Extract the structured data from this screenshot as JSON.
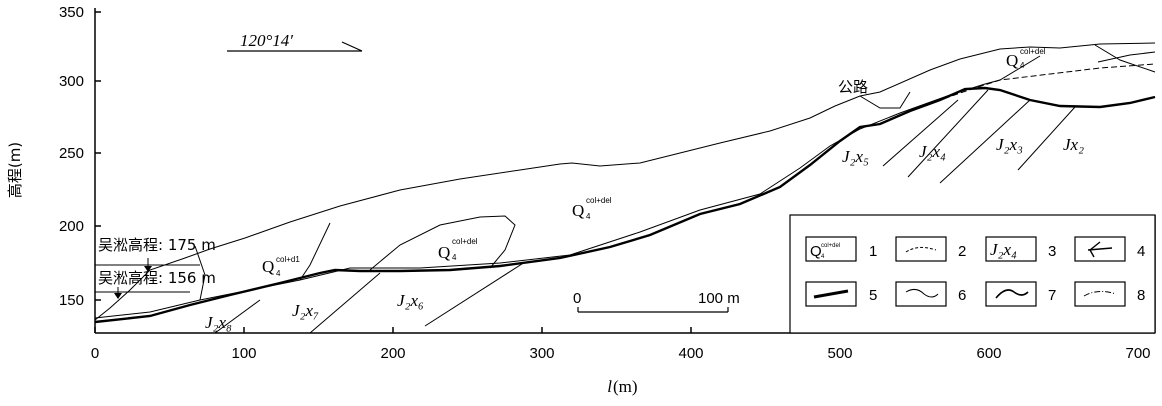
{
  "axes": {
    "xlabel_italic": "l",
    "xlabel_unit": "(m)",
    "ylabel": "高程(m)",
    "x_ticks": [
      "0",
      "100",
      "200",
      "300",
      "400",
      "500",
      "600",
      "700"
    ],
    "y_ticks": [
      "350",
      "300",
      "250",
      "200",
      "150"
    ]
  },
  "annotations": {
    "bearing": "120°14′",
    "road": "公路",
    "wusong_175": "吴淞高程: 175 m",
    "wusong_156": "吴淞高程: 156 m",
    "scale_zero": "0",
    "scale_end": "100 m"
  },
  "units": {
    "q4_base": "Q",
    "q4_sub": "4",
    "q4_coldel": "col+del",
    "q4_cold1": "col+d1",
    "j2x8": "J₂x₈",
    "j2x7": "J₂x₇",
    "j2x6": "J₂x₆",
    "j2x5": "J₂x₅",
    "j2x4": "J₂x₄",
    "j2x3": "J₂x₃",
    "jx2": "Jx₂"
  },
  "legend": {
    "items": [
      {
        "num": "1",
        "symbol": "Q4-col+del"
      },
      {
        "num": "2",
        "symbol": "dashed-curve"
      },
      {
        "num": "3",
        "symbol": "J2x4"
      },
      {
        "num": "4",
        "symbol": "arrow"
      },
      {
        "num": "5",
        "symbol": "thick-line"
      },
      {
        "num": "6",
        "symbol": "thin-curve"
      },
      {
        "num": "7",
        "symbol": "curve"
      },
      {
        "num": "8",
        "symbol": "dash-dot-curve"
      }
    ],
    "j2x4_label": "J₂x₄",
    "q4_label_base": "Q",
    "q4_label_sup": "col+del",
    "q4_label_sub": "4"
  }
}
